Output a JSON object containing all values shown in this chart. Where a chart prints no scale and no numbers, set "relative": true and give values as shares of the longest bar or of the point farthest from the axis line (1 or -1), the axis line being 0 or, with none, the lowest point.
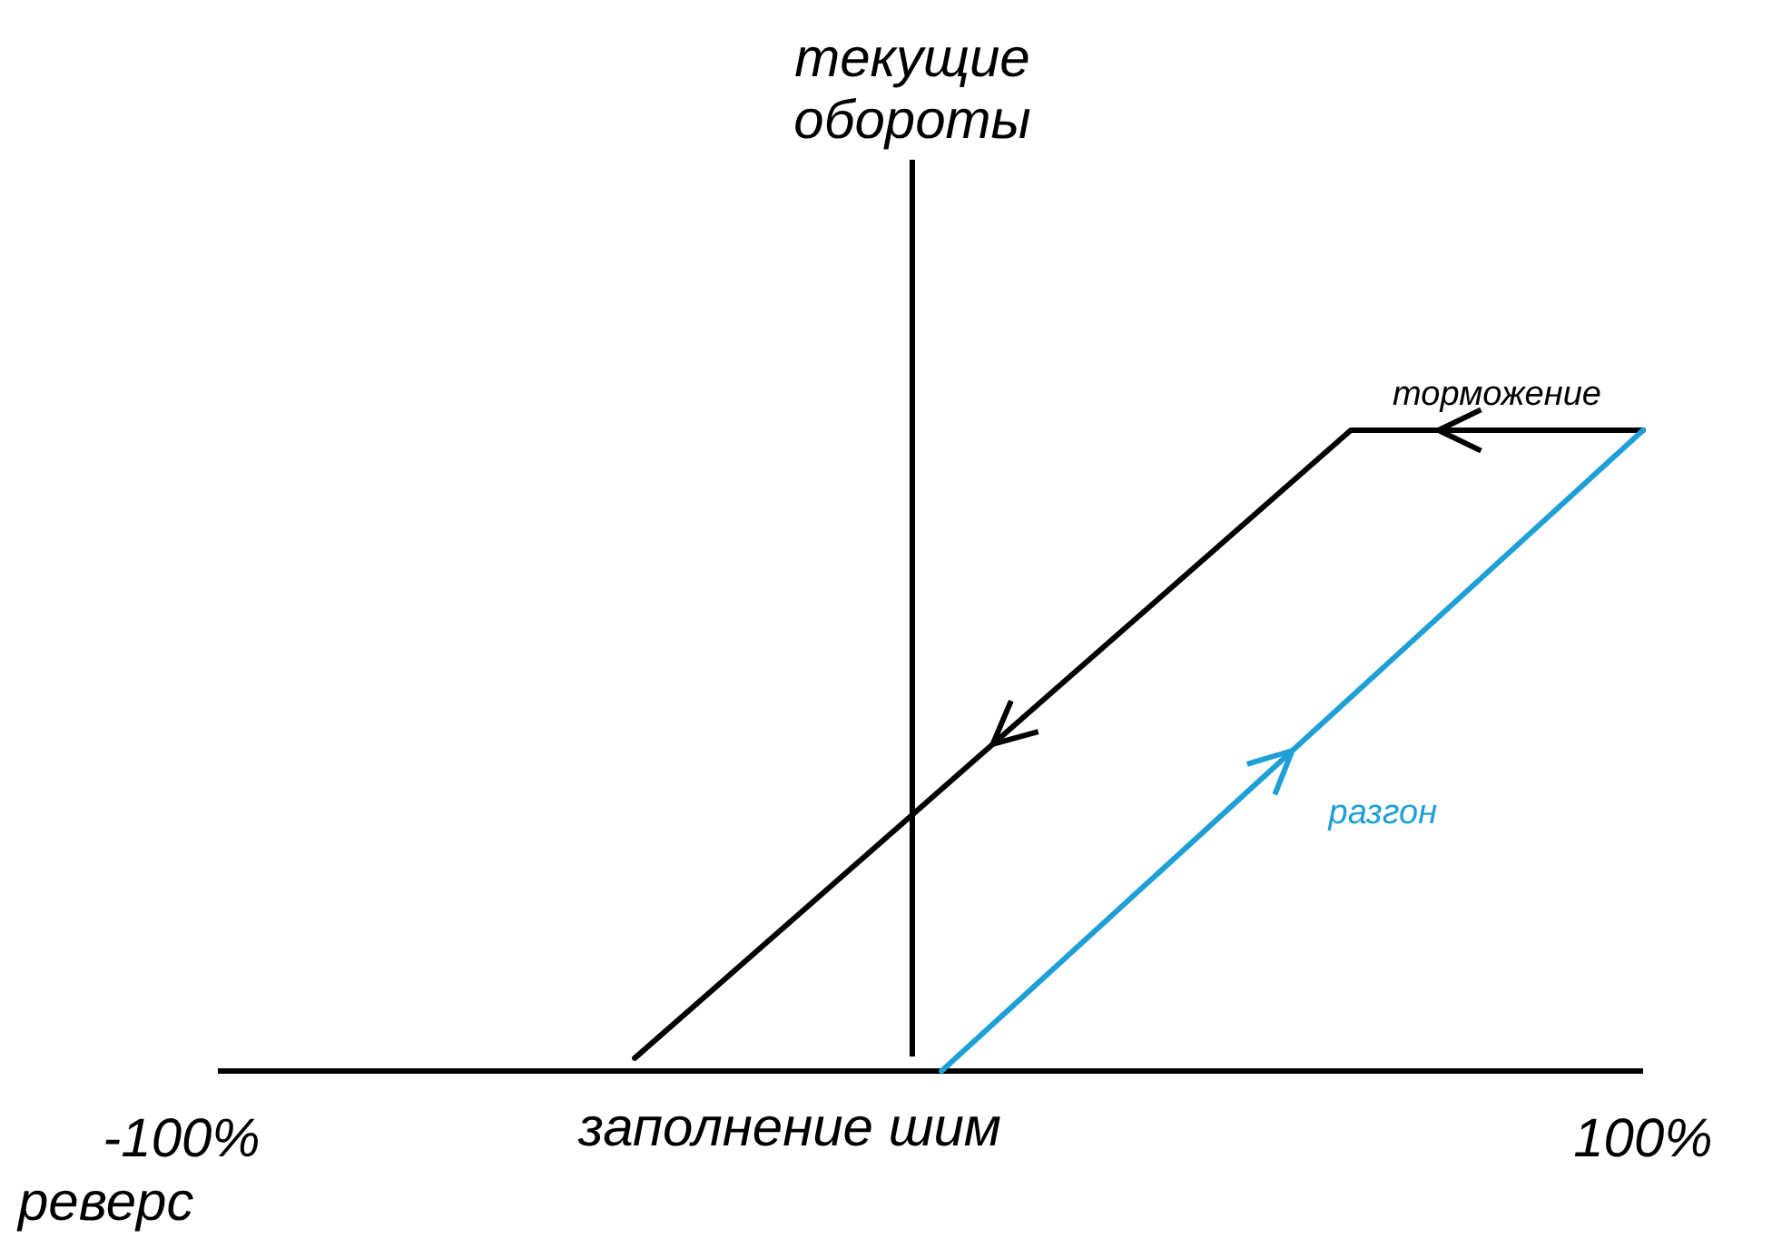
{
  "chart_data": {
    "type": "line",
    "xlabel": "заполнение шим",
    "ref_lines": [
      {
        "axis": "x",
        "value": 0,
        "label": "текущие обороты",
        "color": "#000000"
      }
    ],
    "relative": true,
    "xlim": [
      -100,
      100
    ],
    "xticks": [
      {
        "value": -100,
        "label": "-100%"
      },
      {
        "value": 100,
        "label": "100%"
      }
    ],
    "grid": false,
    "legend": false,
    "marker": "none",
    "line_style": "solid",
    "series": [
      {
        "name": "торможение",
        "color": "#000000",
        "x": [
          100,
          60,
          -38
        ],
        "values": [
          1,
          1,
          0.02
        ]
      },
      {
        "name": "разгон",
        "color": "#1e9fd6",
        "x": [
          4,
          100
        ],
        "values": [
          0,
          1
        ]
      }
    ],
    "annotations": [
      "реверс"
    ]
  }
}
